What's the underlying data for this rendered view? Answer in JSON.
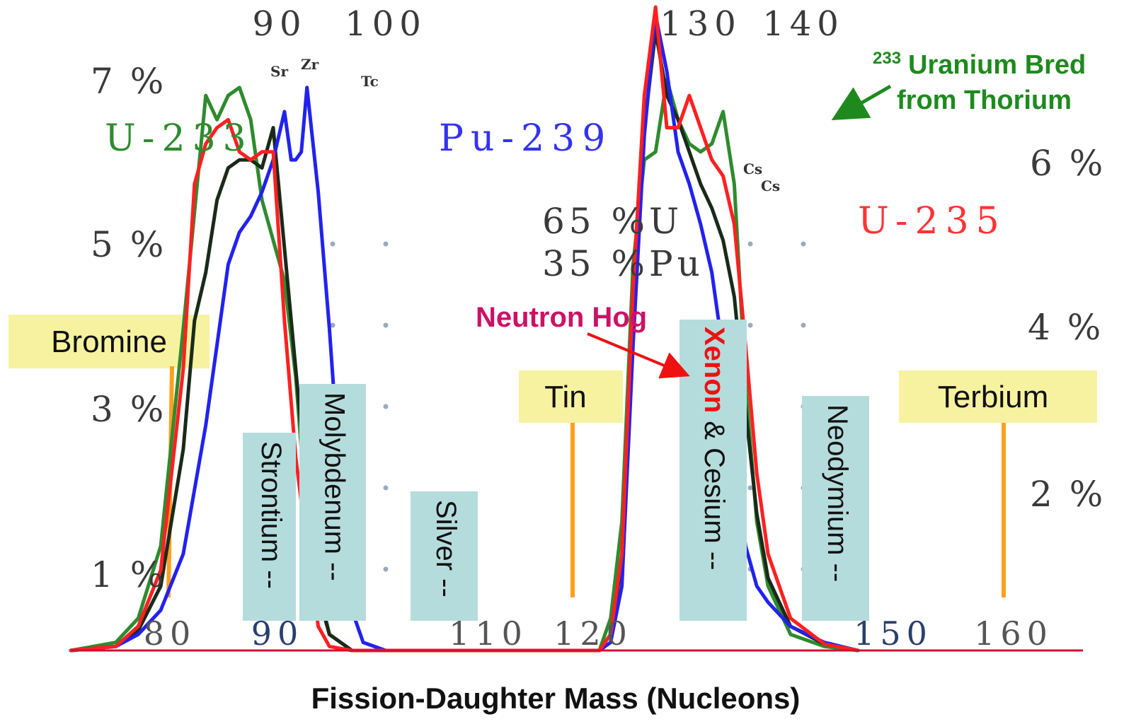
{
  "chart_data": {
    "type": "line",
    "xlabel": "Fission-Daughter Mass (Nucleons)",
    "x_range": [
      78,
      168
    ],
    "y_range": [
      0,
      8
    ],
    "top_ticks": [
      "90",
      "100",
      "130",
      "140"
    ],
    "bottom_ticks": [
      "80",
      "90",
      "110",
      "120",
      "150",
      "160"
    ],
    "left_pct_labels": [
      "7 %",
      "5 %",
      "3 %",
      "1 %"
    ],
    "right_pct_labels": [
      "6 %",
      "4 %",
      "2 %"
    ],
    "peak_markers": [
      "Sr",
      "Zr",
      "Tc",
      "Cs",
      "Cs"
    ],
    "series": [
      {
        "name": "U-233",
        "color": "#2e8b2e",
        "points": [
          [
            78,
            0
          ],
          [
            82,
            0.1
          ],
          [
            84,
            0.4
          ],
          [
            86,
            1.3
          ],
          [
            88,
            4
          ],
          [
            90,
            6.9
          ],
          [
            91,
            6.6
          ],
          [
            92,
            6.9
          ],
          [
            93,
            7
          ],
          [
            94,
            6.6
          ],
          [
            95,
            5.6
          ],
          [
            96,
            5.1
          ],
          [
            97,
            4.6
          ],
          [
            98,
            3.4
          ],
          [
            99,
            1.6
          ],
          [
            100,
            0.8
          ],
          [
            101,
            0.2
          ],
          [
            103,
            0
          ],
          [
            125,
            0
          ],
          [
            126,
            0.4
          ],
          [
            127,
            1.6
          ],
          [
            128,
            4.8
          ],
          [
            129,
            6.1
          ],
          [
            130,
            6.2
          ],
          [
            131,
            7.1
          ],
          [
            132,
            6.6
          ],
          [
            133,
            6.3
          ],
          [
            134,
            6.2
          ],
          [
            135,
            6.3
          ],
          [
            136,
            6.7
          ],
          [
            137,
            5.8
          ],
          [
            138,
            3.3
          ],
          [
            139,
            1.6
          ],
          [
            140,
            0.8
          ],
          [
            142,
            0.2
          ],
          [
            145,
            0.05
          ],
          [
            148,
            0
          ]
        ]
      },
      {
        "name": "U-235",
        "color": "#ff2020",
        "points": [
          [
            78,
            0
          ],
          [
            82,
            0.05
          ],
          [
            84,
            0.3
          ],
          [
            86,
            1
          ],
          [
            88,
            3.5
          ],
          [
            89,
            5.8
          ],
          [
            90,
            6.3
          ],
          [
            91,
            6.5
          ],
          [
            92,
            6.6
          ],
          [
            93,
            6.2
          ],
          [
            94,
            6.1
          ],
          [
            95,
            6.2
          ],
          [
            96,
            6.2
          ],
          [
            97,
            4.1
          ],
          [
            98,
            2.4
          ],
          [
            99,
            1.3
          ],
          [
            100,
            0.3
          ],
          [
            101,
            0.05
          ],
          [
            103,
            0
          ],
          [
            125,
            0
          ],
          [
            126,
            0.2
          ],
          [
            127,
            1.2
          ],
          [
            128,
            4.5
          ],
          [
            129,
            6.9
          ],
          [
            130,
            8
          ],
          [
            131,
            6.5
          ],
          [
            132,
            6.5
          ],
          [
            133,
            6.9
          ],
          [
            134,
            6.5
          ],
          [
            135,
            6.1
          ],
          [
            136,
            5.9
          ],
          [
            137,
            5.3
          ],
          [
            138,
            3.8
          ],
          [
            139,
            2.2
          ],
          [
            140,
            1.2
          ],
          [
            142,
            0.4
          ],
          [
            145,
            0.08
          ],
          [
            148,
            0
          ]
        ]
      },
      {
        "name": "Pu-239",
        "color": "#2222ee",
        "points": [
          [
            78,
            0
          ],
          [
            82,
            0.05
          ],
          [
            84,
            0.2
          ],
          [
            86,
            0.5
          ],
          [
            88,
            1.2
          ],
          [
            90,
            2.8
          ],
          [
            91,
            3.8
          ],
          [
            92,
            4.8
          ],
          [
            93,
            5.2
          ],
          [
            94,
            5.4
          ],
          [
            95,
            5.7
          ],
          [
            96,
            6.1
          ],
          [
            97,
            6.7
          ],
          [
            97.6,
            6.1
          ],
          [
            98,
            6.1
          ],
          [
            98.5,
            6.2
          ],
          [
            99,
            7
          ],
          [
            100,
            5.7
          ],
          [
            101,
            4
          ],
          [
            102,
            2
          ],
          [
            103,
            0.5
          ],
          [
            104,
            0.1
          ],
          [
            106,
            0
          ],
          [
            125,
            0
          ],
          [
            126,
            0.1
          ],
          [
            127,
            0.8
          ],
          [
            128,
            3.8
          ],
          [
            129,
            6.4
          ],
          [
            130,
            7.9
          ],
          [
            131,
            7.2
          ],
          [
            132,
            6.2
          ],
          [
            133,
            5.8
          ],
          [
            134,
            5.3
          ],
          [
            135,
            4.7
          ],
          [
            136,
            3.7
          ],
          [
            137,
            2.4
          ],
          [
            138,
            1.3
          ],
          [
            139,
            0.8
          ],
          [
            140,
            0.6
          ],
          [
            142,
            0.3
          ],
          [
            145,
            0.1
          ],
          [
            148,
            0
          ]
        ]
      },
      {
        "name": "65%U 35%Pu",
        "color": "#1a2a1a",
        "points": [
          [
            78,
            0
          ],
          [
            82,
            0.05
          ],
          [
            84,
            0.25
          ],
          [
            86,
            0.8
          ],
          [
            88,
            2.5
          ],
          [
            89,
            4.1
          ],
          [
            90,
            4.7
          ],
          [
            91,
            5.6
          ],
          [
            92,
            6
          ],
          [
            93,
            6.1
          ],
          [
            94,
            6.1
          ],
          [
            95,
            6
          ],
          [
            96,
            6.5
          ],
          [
            97,
            5
          ],
          [
            98,
            3.5
          ],
          [
            99,
            2
          ],
          [
            100,
            0.7
          ],
          [
            101,
            0.2
          ],
          [
            103,
            0
          ],
          [
            125,
            0
          ],
          [
            126,
            0.2
          ],
          [
            127,
            1.1
          ],
          [
            128,
            4.3
          ],
          [
            129,
            6.5
          ],
          [
            130,
            7.7
          ],
          [
            131,
            6.9
          ],
          [
            132,
            6.6
          ],
          [
            133,
            6.2
          ],
          [
            134,
            5.8
          ],
          [
            135,
            5.5
          ],
          [
            136,
            5.1
          ],
          [
            137,
            4.4
          ],
          [
            138,
            3
          ],
          [
            139,
            1.7
          ],
          [
            140,
            0.9
          ],
          [
            142,
            0.3
          ],
          [
            145,
            0.08
          ],
          [
            148,
            0
          ]
        ]
      }
    ],
    "series_labels": [
      "U-233",
      "Pu-239",
      "U-235",
      "65 %U",
      "35 %Pu"
    ],
    "element_boxes": [
      {
        "name": "Bromine",
        "orientation": "horizontal",
        "color": "#f7f2a0"
      },
      {
        "name": "Tin",
        "orientation": "horizontal",
        "color": "#f7f2a0"
      },
      {
        "name": "Terbium",
        "orientation": "horizontal",
        "color": "#f7f2a0"
      },
      {
        "name": "Strontium --",
        "orientation": "vertical",
        "color": "#b5dcdc"
      },
      {
        "name": "Molybdenum --",
        "orientation": "vertical",
        "color": "#b5dcdc"
      },
      {
        "name": "Silver --",
        "orientation": "vertical",
        "color": "#b5dcdc"
      },
      {
        "name": "Neodymium --",
        "orientation": "vertical",
        "color": "#b5dcdc"
      }
    ],
    "xenon_box": {
      "xenon": "Xenon",
      "rest": " & Cesium --",
      "color": "#b5dcdc"
    },
    "annotations": {
      "uranium_sup": "233",
      "uranium_line1": "Uranium Bred",
      "uranium_line2": "from Thorium",
      "neutron_hog": "Neutron Hog"
    }
  }
}
